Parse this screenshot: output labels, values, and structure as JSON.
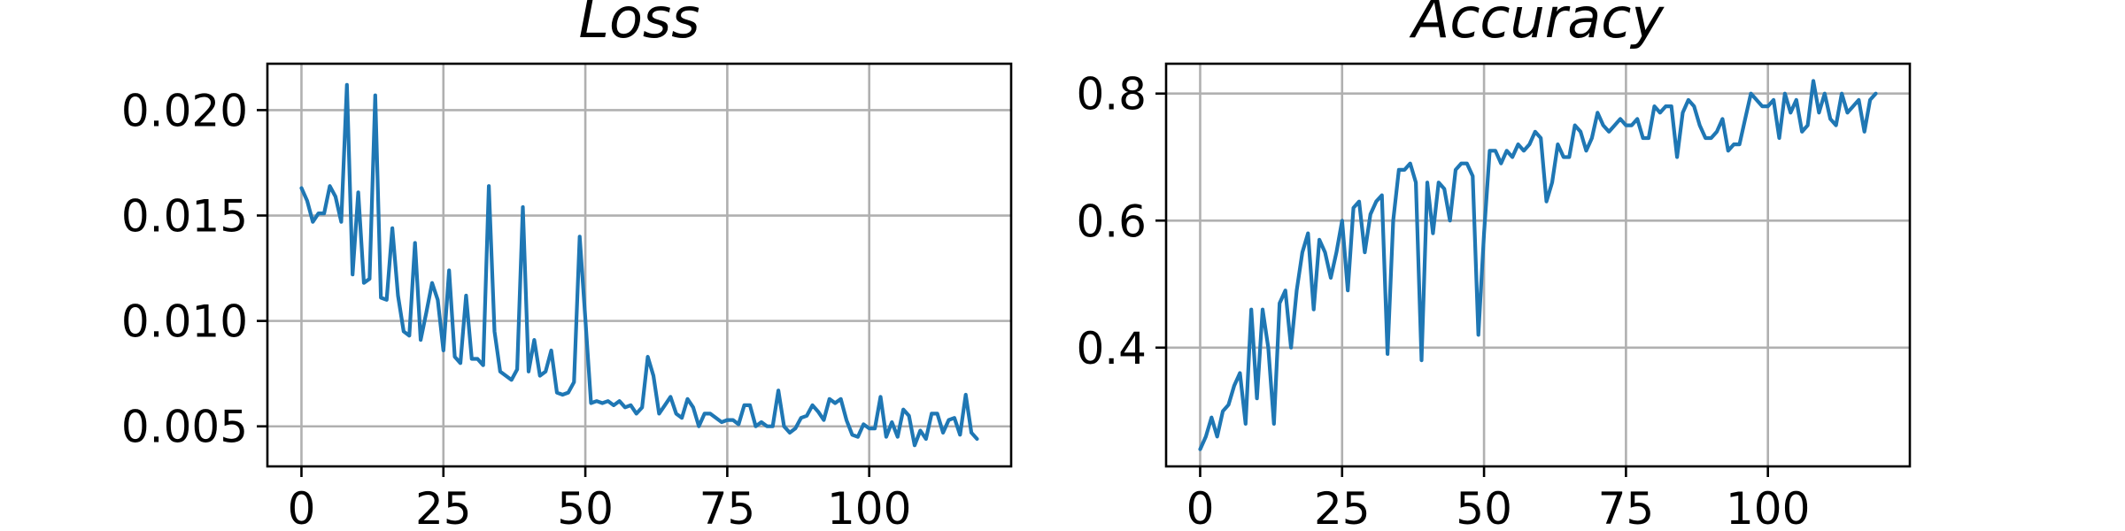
{
  "colors": {
    "series": "#1f77b4",
    "grid": "#b0b0b0",
    "axis": "#000000"
  },
  "chart_data": [
    {
      "type": "line",
      "title": "Loss",
      "xlabel": "",
      "ylabel": "",
      "xlim": [
        -6,
        125
      ],
      "ylim": [
        0.0031,
        0.0222
      ],
      "grid": true,
      "x_ticks": [
        0,
        25,
        50,
        75,
        100
      ],
      "x_tick_labels": [
        "0",
        "25",
        "50",
        "75",
        "100"
      ],
      "y_ticks": [
        0.005,
        0.01,
        0.015,
        0.02
      ],
      "y_tick_labels": [
        "0.005",
        "0.010",
        "0.015",
        "0.020"
      ],
      "series": [
        {
          "values": [
            0.0163,
            0.0157,
            0.0147,
            0.0151,
            0.0151,
            0.0164,
            0.0159,
            0.0147,
            0.0212,
            0.0122,
            0.0161,
            0.0118,
            0.012,
            0.0207,
            0.0111,
            0.011,
            0.0144,
            0.0112,
            0.0095,
            0.0093,
            0.0137,
            0.0091,
            0.0104,
            0.0118,
            0.011,
            0.0086,
            0.0124,
            0.0083,
            0.008,
            0.0112,
            0.0082,
            0.0082,
            0.0079,
            0.0164,
            0.0095,
            0.0076,
            0.0074,
            0.0072,
            0.0077,
            0.0154,
            0.0076,
            0.0091,
            0.0074,
            0.0076,
            0.0086,
            0.0066,
            0.0065,
            0.0066,
            0.0071,
            0.014,
            0.0101,
            0.0061,
            0.0062,
            0.0061,
            0.0062,
            0.006,
            0.0062,
            0.0059,
            0.006,
            0.0056,
            0.0059,
            0.0083,
            0.0074,
            0.0056,
            0.006,
            0.0064,
            0.0056,
            0.0054,
            0.0063,
            0.0059,
            0.005,
            0.0056,
            0.0056,
            0.0054,
            0.0052,
            0.0053,
            0.0053,
            0.0051,
            0.006,
            0.006,
            0.005,
            0.0052,
            0.005,
            0.005,
            0.0067,
            0.005,
            0.0047,
            0.0049,
            0.0054,
            0.0055,
            0.006,
            0.0057,
            0.0053,
            0.0063,
            0.0061,
            0.0063,
            0.0053,
            0.0046,
            0.0045,
            0.0051,
            0.0049,
            0.0049,
            0.0064,
            0.0045,
            0.0052,
            0.0045,
            0.0058,
            0.0055,
            0.0041,
            0.0048,
            0.0044,
            0.0056,
            0.0056,
            0.0047,
            0.0053,
            0.0054,
            0.0046,
            0.0065,
            0.0047,
            0.0044
          ]
        }
      ]
    },
    {
      "type": "line",
      "title": "Accuracy",
      "xlabel": "",
      "ylabel": "",
      "xlim": [
        -6,
        125
      ],
      "ylim": [
        0.213,
        0.847
      ],
      "grid": true,
      "x_ticks": [
        0,
        25,
        50,
        75,
        100
      ],
      "x_tick_labels": [
        "0",
        "25",
        "50",
        "75",
        "100"
      ],
      "y_ticks": [
        0.4,
        0.6,
        0.8
      ],
      "y_tick_labels": [
        "0.4",
        "0.6",
        "0.8"
      ],
      "series": [
        {
          "values": [
            0.24,
            0.26,
            0.29,
            0.26,
            0.3,
            0.31,
            0.34,
            0.36,
            0.28,
            0.46,
            0.32,
            0.46,
            0.4,
            0.28,
            0.47,
            0.49,
            0.4,
            0.49,
            0.55,
            0.58,
            0.46,
            0.57,
            0.55,
            0.51,
            0.55,
            0.6,
            0.49,
            0.62,
            0.63,
            0.55,
            0.61,
            0.63,
            0.64,
            0.39,
            0.6,
            0.68,
            0.68,
            0.69,
            0.66,
            0.38,
            0.66,
            0.58,
            0.66,
            0.65,
            0.6,
            0.68,
            0.69,
            0.69,
            0.67,
            0.42,
            0.58,
            0.71,
            0.71,
            0.69,
            0.71,
            0.7,
            0.72,
            0.71,
            0.72,
            0.74,
            0.73,
            0.63,
            0.66,
            0.72,
            0.7,
            0.7,
            0.75,
            0.74,
            0.71,
            0.73,
            0.77,
            0.75,
            0.74,
            0.75,
            0.76,
            0.75,
            0.75,
            0.76,
            0.73,
            0.73,
            0.78,
            0.77,
            0.78,
            0.78,
            0.7,
            0.77,
            0.79,
            0.78,
            0.75,
            0.73,
            0.73,
            0.74,
            0.76,
            0.71,
            0.72,
            0.72,
            0.76,
            0.8,
            0.79,
            0.78,
            0.78,
            0.79,
            0.73,
            0.8,
            0.77,
            0.79,
            0.74,
            0.75,
            0.82,
            0.77,
            0.8,
            0.76,
            0.75,
            0.8,
            0.77,
            0.78,
            0.79,
            0.74,
            0.79,
            0.8
          ]
        }
      ]
    }
  ]
}
